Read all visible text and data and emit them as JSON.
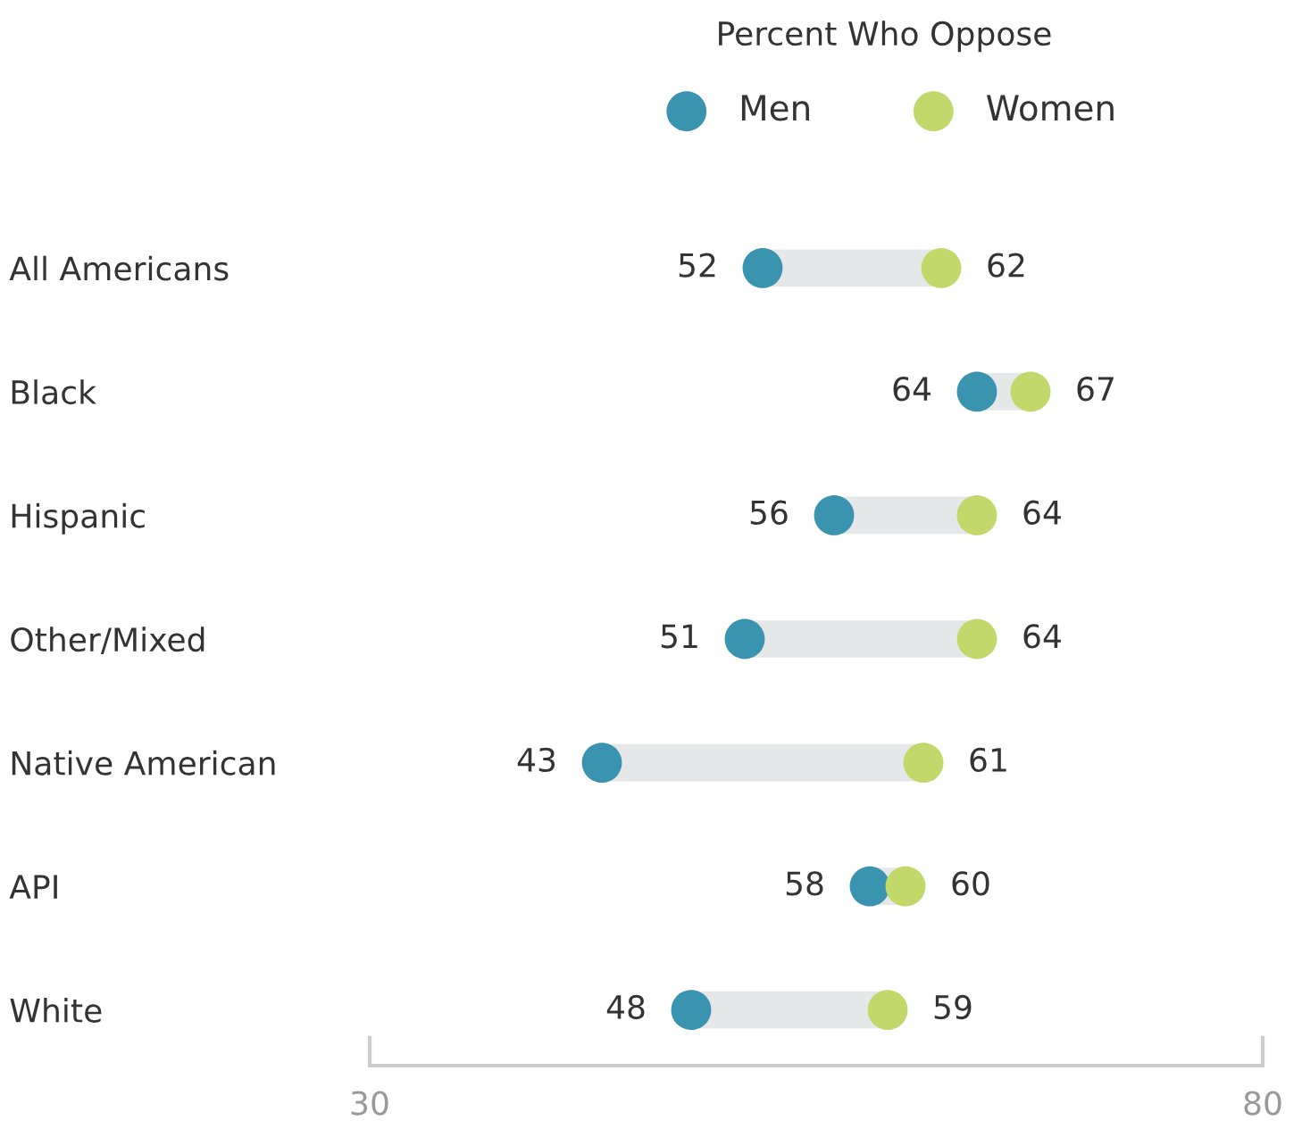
{
  "chart_data": {
    "type": "scatter",
    "orientation": "horizontal",
    "legend_title": "Percent Who Oppose",
    "legend": "top",
    "categories": [
      "All Americans",
      "Black",
      "Hispanic",
      "Other/Mixed",
      "Native American",
      "API",
      "White"
    ],
    "series": [
      {
        "name": "Men",
        "color": "#3a94b0",
        "values": [
          52,
          64,
          56,
          51,
          43,
          58,
          48
        ]
      },
      {
        "name": "Women",
        "color": "#c3d86a",
        "values": [
          62,
          67,
          64,
          64,
          61,
          60,
          59
        ]
      }
    ],
    "xlim": [
      30,
      80
    ],
    "xticks": [
      30,
      80
    ],
    "data_labels": true,
    "grid": false,
    "marker": "circle"
  }
}
